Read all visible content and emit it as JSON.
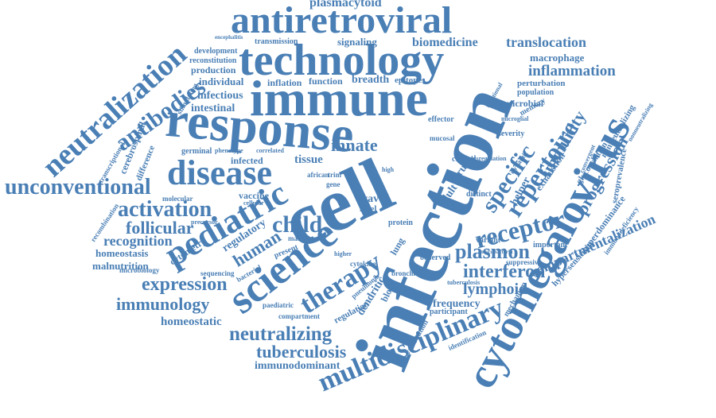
{
  "colors": {
    "word": "#4a7fb5",
    "background": "#ffffff"
  },
  "words": [
    "plasmacytoid",
    "antiretroviral",
    "technology",
    "immune",
    "response",
    "cell",
    "infection",
    "cytomegalovirus",
    "neutralization",
    "antibodies",
    "disease",
    "unconventional",
    "activation",
    "pediatric",
    "science",
    "child",
    "follicular",
    "recognition",
    "homeostasis",
    "malnutrition",
    "expression",
    "immunology",
    "homeostatic",
    "neutralizing",
    "tuberculosis",
    "immunodominant",
    "multidisciplinary",
    "therapy",
    "human",
    "receptor",
    "plasmon",
    "interferon",
    "lymphoid",
    "frequency",
    "specific",
    "repertoire",
    "immunity",
    "progression",
    "inflammation",
    "macrophage",
    "translocation",
    "biomedicine",
    "signaling",
    "transmission",
    "encephalitis",
    "development",
    "reconstitution",
    "production",
    "individual",
    "infectious",
    "intestinal",
    "inflation",
    "function",
    "breadth",
    "epitopes",
    "perturbation",
    "population",
    "microbial",
    "memory",
    "effector",
    "innate",
    "tissue",
    "infected",
    "germinal",
    "regulatory",
    "cytometry",
    "variant",
    "important",
    "compartmentalization",
    "superdominance",
    "hypersensitivity",
    "immunodeficiency",
    "glycosylation",
    "seroprevalence",
    "nonneutralizing",
    "exhaustion",
    "helper",
    "adult",
    "virus",
    "dendritic",
    "blood",
    "regulation",
    "participant",
    "observed",
    "vaccination",
    "identification",
    "mechanism",
    "compartment",
    "paediatric",
    "vaccine",
    "cellular",
    "cerebrospinal",
    "difference",
    "recombination",
    "microbiology",
    "sequencing",
    "bacterial",
    "present",
    "marker",
    "control",
    "wave",
    "level",
    "protein",
    "distinct",
    "suppressive",
    "tuberculosis",
    "molecular",
    "precursor",
    "phenotype",
    "correlated",
    "stimulating",
    "transcriptional",
    "severity",
    "dynamic",
    "mucosal",
    "lung",
    "cytokine",
    "bronchial",
    "pneumonia",
    "african",
    "trim",
    "gene",
    "high",
    "higher",
    "functional",
    "microglial",
    "convergent",
    "nonneutralizing",
    "dysregulation",
    "mycobacteria"
  ]
}
